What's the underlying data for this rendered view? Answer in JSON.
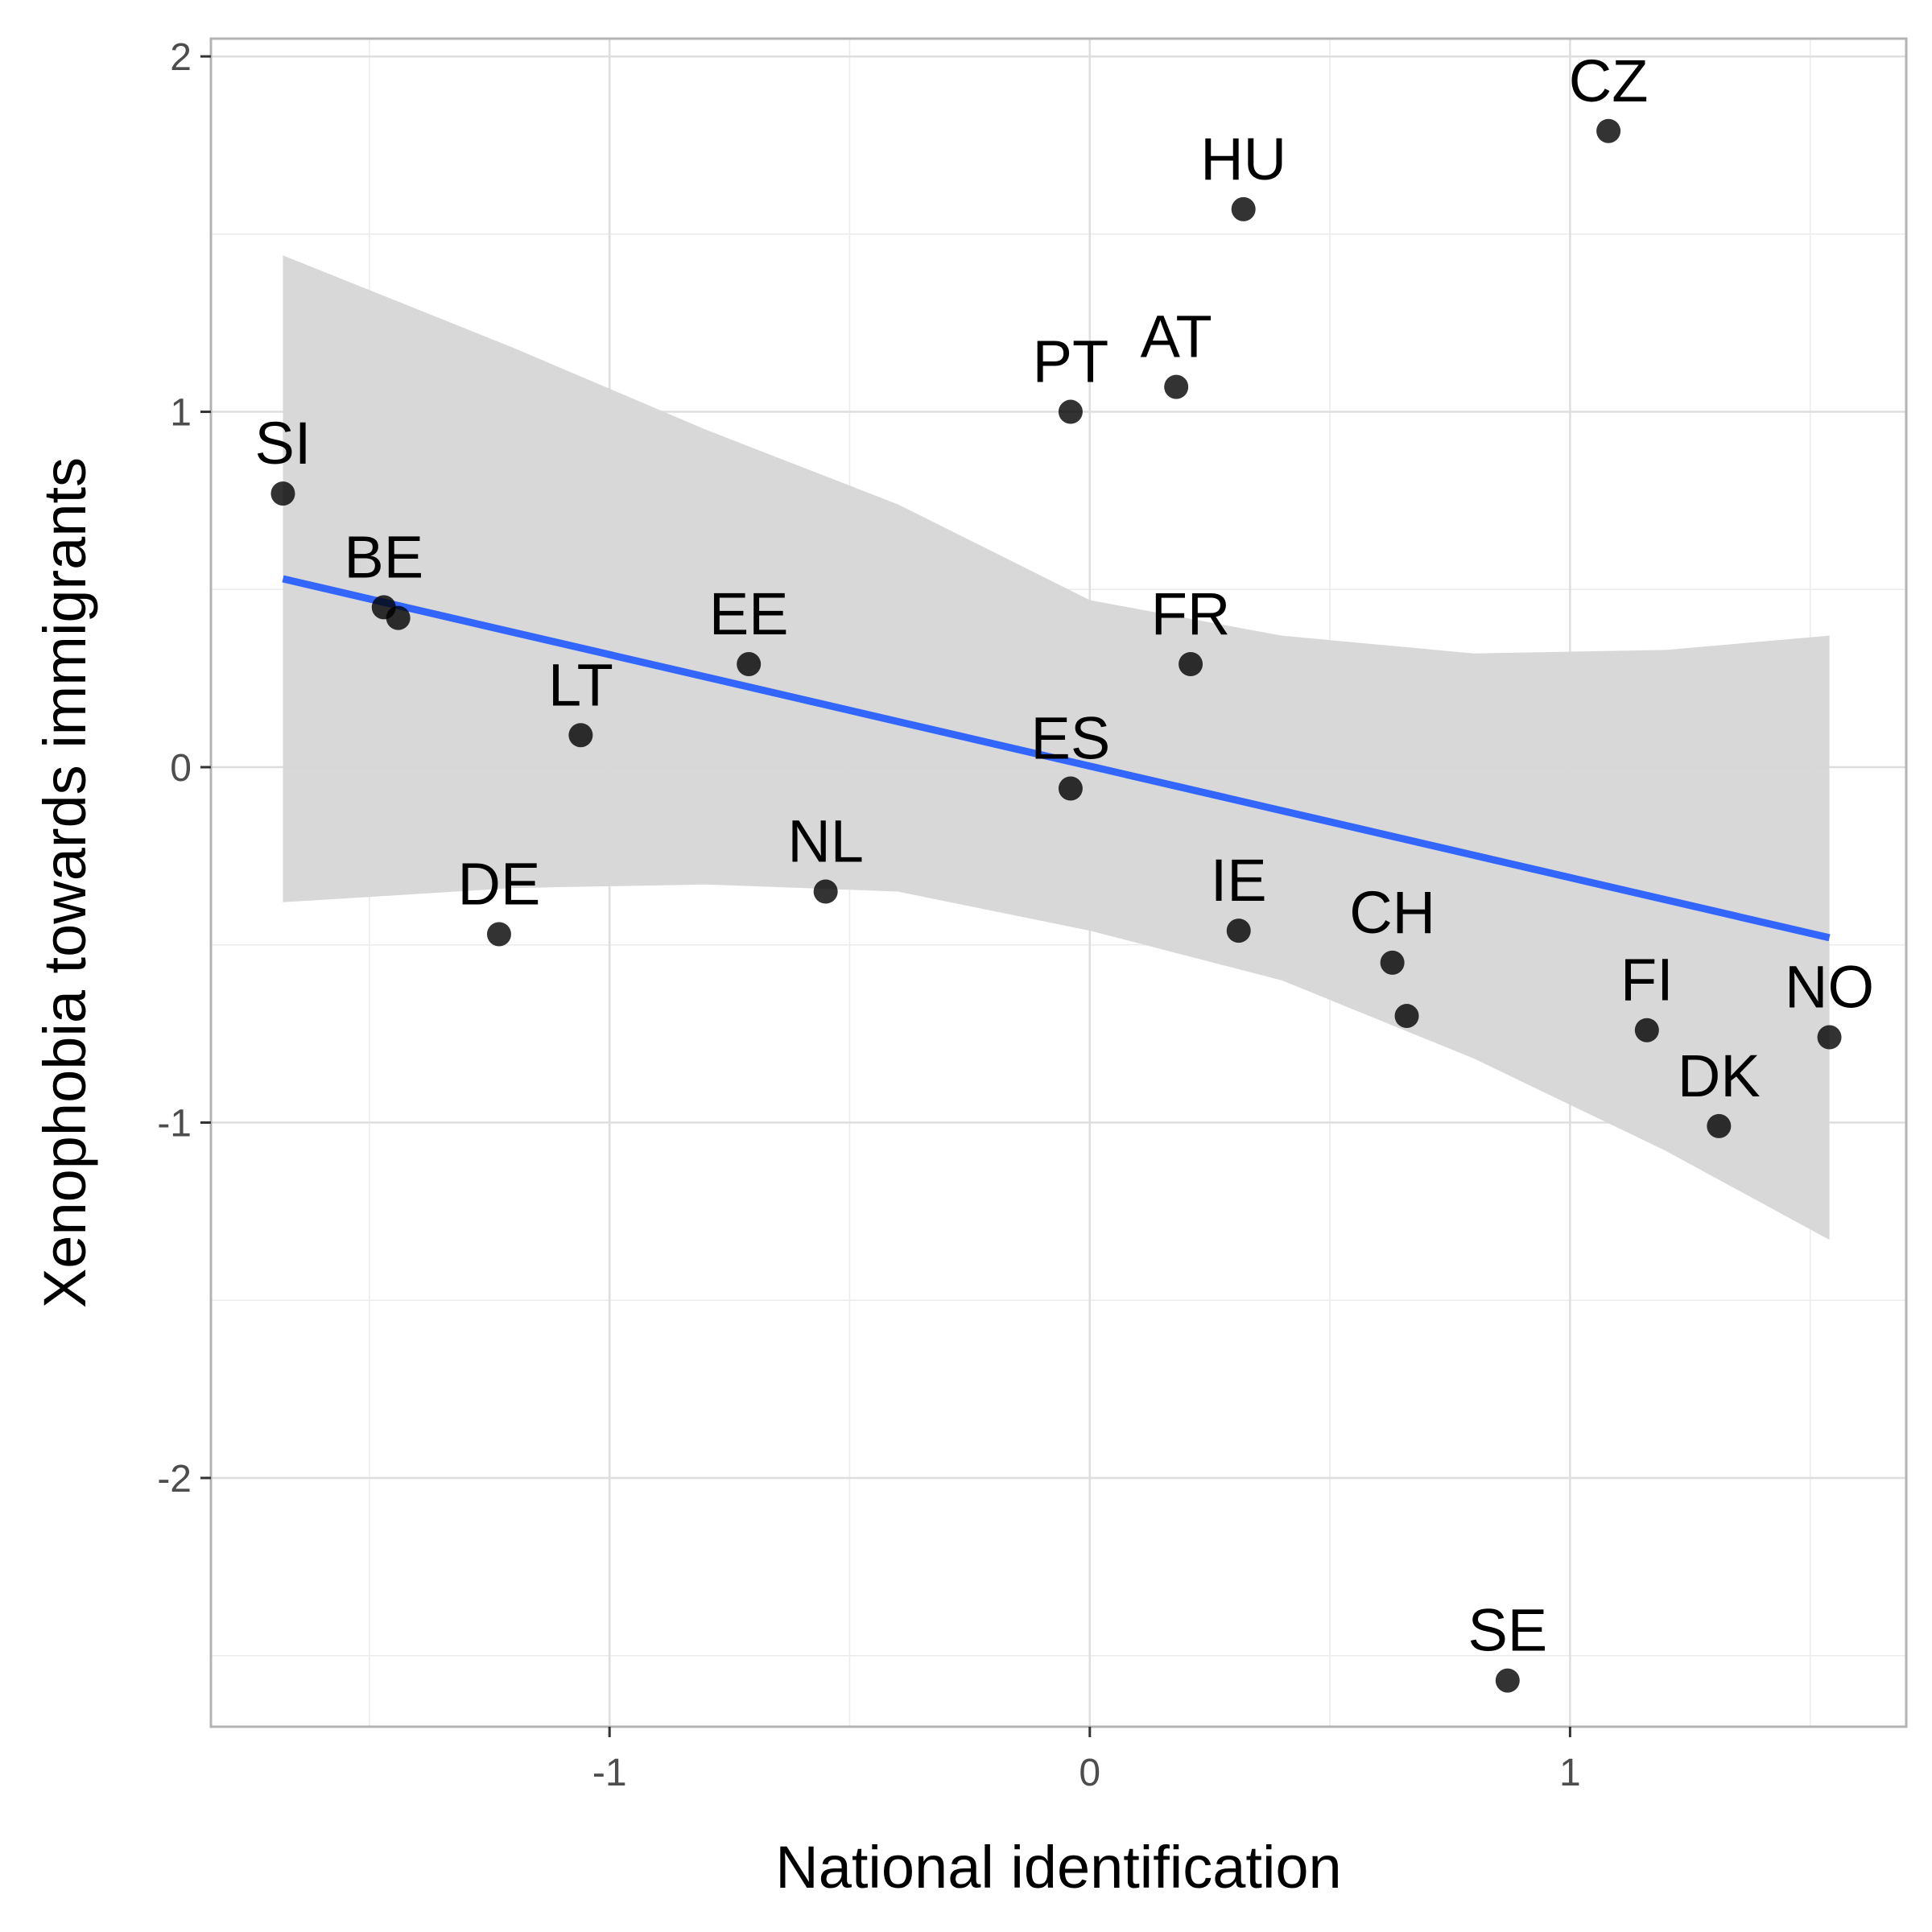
{
  "chart_data": {
    "type": "scatter",
    "xlabel": "National identification",
    "ylabel": "Xenophobia towards immigrants",
    "xlim": [
      -1.83,
      1.7
    ],
    "ylim": [
      -2.7,
      2.05
    ],
    "x_ticks": [
      -1,
      0,
      1
    ],
    "x_tick_labels": [
      "-1",
      "0",
      "1"
    ],
    "y_ticks": [
      -2,
      -1,
      0,
      1,
      2
    ],
    "y_tick_labels": [
      "-2",
      "-1",
      "0",
      "1",
      "2"
    ],
    "grid": true,
    "points": [
      {
        "label": "SI",
        "x": -1.68,
        "y": 0.77
      },
      {
        "label": "BE",
        "x": -1.47,
        "y": 0.45
      },
      {
        "label": "",
        "x": -1.44,
        "y": 0.42
      },
      {
        "label": "DE",
        "x": -1.23,
        "y": -0.47
      },
      {
        "label": "LT",
        "x": -1.06,
        "y": 0.09
      },
      {
        "label": "EE",
        "x": -0.71,
        "y": 0.29
      },
      {
        "label": "NL",
        "x": -0.55,
        "y": -0.35
      },
      {
        "label": "PT",
        "x": -0.04,
        "y": 1.0
      },
      {
        "label": "ES",
        "x": -0.04,
        "y": -0.06
      },
      {
        "label": "AT",
        "x": 0.18,
        "y": 1.07
      },
      {
        "label": "FR",
        "x": 0.21,
        "y": 0.29
      },
      {
        "label": "HU",
        "x": 0.32,
        "y": 1.57
      },
      {
        "label": "IE",
        "x": 0.31,
        "y": -0.46
      },
      {
        "label": "CH",
        "x": 0.63,
        "y": -0.55
      },
      {
        "label": "",
        "x": 0.66,
        "y": -0.7
      },
      {
        "label": "SE",
        "x": 0.87,
        "y": -2.57
      },
      {
        "label": "CZ",
        "x": 1.08,
        "y": 1.79
      },
      {
        "label": "FI",
        "x": 1.16,
        "y": -0.74
      },
      {
        "label": "DK",
        "x": 1.31,
        "y": -1.01
      },
      {
        "label": "NO",
        "x": 1.54,
        "y": -0.76
      }
    ],
    "regression_line": {
      "x": [
        -1.68,
        1.54
      ],
      "y": [
        0.53,
        -0.48
      ],
      "color": "#3366FF"
    },
    "confidence_band": {
      "color": "#d6d6d6",
      "x": [
        -1.68,
        -1.2,
        -0.8,
        -0.4,
        0.0,
        0.4,
        0.8,
        1.2,
        1.54
      ],
      "upper": [
        1.44,
        1.18,
        0.95,
        0.74,
        0.47,
        0.37,
        0.32,
        0.33,
        0.37
      ],
      "lower": [
        -0.38,
        -0.34,
        -0.33,
        -0.35,
        -0.46,
        -0.6,
        -0.82,
        -1.08,
        -1.33
      ]
    }
  }
}
